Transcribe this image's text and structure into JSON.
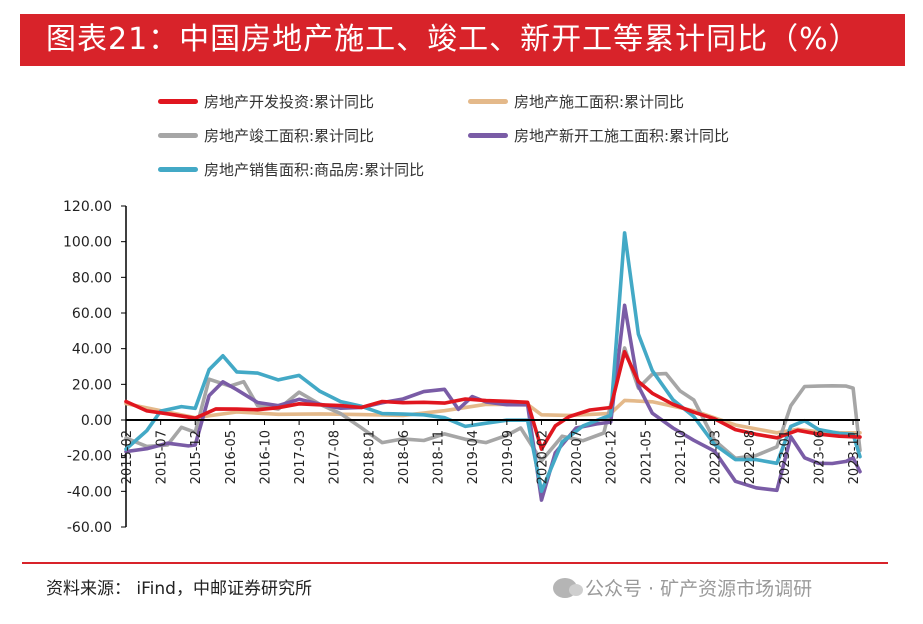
{
  "header": {
    "title": "图表21：中国房地产施工、竣工、新开工等累计同比（%）"
  },
  "footer": {
    "source": "资料来源： iFind，中邮证券研究所",
    "watermark": "公众号 · 矿产资源市场调研"
  },
  "colors": {
    "title_bg": "#d8232a",
    "investment": "#e0161f",
    "construction": "#e4b98a",
    "completed": "#a6a6a6",
    "new_start": "#7a5ca6",
    "sales": "#43a9c6"
  },
  "chart_data": {
    "type": "line",
    "title": "",
    "xlabel": "",
    "ylabel": "",
    "ylim": [
      -60,
      120
    ],
    "yticks": [
      "120.00",
      "100.00",
      "80.00",
      "60.00",
      "40.00",
      "20.00",
      "0.00",
      "-20.00",
      "-40.00",
      "-60.00"
    ],
    "ytick_values": [
      120,
      100,
      80,
      60,
      40,
      20,
      0,
      -20,
      -40,
      -60
    ],
    "x_start": "2015-02",
    "x_end": "2023-12",
    "xticks": [
      "2015-02",
      "2015-07",
      "2015-12",
      "2016-05",
      "2016-10",
      "2017-03",
      "2017-08",
      "2018-01",
      "2018-06",
      "2018-11",
      "2019-04",
      "2019-09",
      "2020-02",
      "2020-07",
      "2020-12",
      "2021-05",
      "2021-10",
      "2022-03",
      "2022-08",
      "2023-01",
      "2023-06",
      "2023-11"
    ],
    "grid": false,
    "legend_position": "top",
    "series": [
      {
        "name": "房地产开发投资:累计同比",
        "color": "#e0161f",
        "points": [
          [
            "2015-02",
            10.4
          ],
          [
            "2015-05",
            5.1
          ],
          [
            "2015-08",
            3.5
          ],
          [
            "2015-12",
            1.0
          ],
          [
            "2016-03",
            6.2
          ],
          [
            "2016-06",
            6.1
          ],
          [
            "2016-09",
            5.8
          ],
          [
            "2016-12",
            6.9
          ],
          [
            "2017-03",
            9.1
          ],
          [
            "2017-06",
            8.5
          ],
          [
            "2017-09",
            8.1
          ],
          [
            "2017-12",
            7.0
          ],
          [
            "2018-03",
            10.4
          ],
          [
            "2018-06",
            9.7
          ],
          [
            "2018-09",
            9.9
          ],
          [
            "2018-12",
            9.5
          ],
          [
            "2019-03",
            11.8
          ],
          [
            "2019-06",
            10.9
          ],
          [
            "2019-09",
            10.5
          ],
          [
            "2019-12",
            9.9
          ],
          [
            "2020-02",
            -16.3
          ],
          [
            "2020-04",
            -3.3
          ],
          [
            "2020-06",
            1.9
          ],
          [
            "2020-09",
            5.6
          ],
          [
            "2020-12",
            7.0
          ],
          [
            "2021-02",
            38.3
          ],
          [
            "2021-04",
            21.6
          ],
          [
            "2021-06",
            15.0
          ],
          [
            "2021-09",
            8.8
          ],
          [
            "2021-12",
            4.4
          ],
          [
            "2022-03",
            0.7
          ],
          [
            "2022-06",
            -5.4
          ],
          [
            "2022-09",
            -8.0
          ],
          [
            "2022-12",
            -10.0
          ],
          [
            "2023-03",
            -5.8
          ],
          [
            "2023-06",
            -7.9
          ],
          [
            "2023-09",
            -9.1
          ],
          [
            "2023-12",
            -9.6
          ]
        ]
      },
      {
        "name": "房地产施工面积:累计同比",
        "color": "#e4b98a",
        "points": [
          [
            "2015-02",
            9.2
          ],
          [
            "2015-06",
            6.0
          ],
          [
            "2015-12",
            1.3
          ],
          [
            "2016-06",
            4.5
          ],
          [
            "2016-12",
            3.2
          ],
          [
            "2017-06",
            3.4
          ],
          [
            "2017-12",
            3.0
          ],
          [
            "2018-06",
            2.6
          ],
          [
            "2018-12",
            5.2
          ],
          [
            "2019-06",
            8.8
          ],
          [
            "2019-12",
            8.7
          ],
          [
            "2020-02",
            2.9
          ],
          [
            "2020-06",
            2.6
          ],
          [
            "2020-12",
            3.7
          ],
          [
            "2021-02",
            11.0
          ],
          [
            "2021-06",
            10.2
          ],
          [
            "2021-12",
            5.2
          ],
          [
            "2022-06",
            -2.8
          ],
          [
            "2022-12",
            -7.2
          ],
          [
            "2023-03",
            -5.2
          ],
          [
            "2023-06",
            -6.6
          ],
          [
            "2023-09",
            -7.1
          ],
          [
            "2023-12",
            -7.2
          ]
        ]
      },
      {
        "name": "房地产竣工面积:累计同比",
        "color": "#a6a6a6",
        "points": [
          [
            "2015-02",
            -10.1
          ],
          [
            "2015-05",
            -14.8
          ],
          [
            "2015-08",
            -14.0
          ],
          [
            "2015-10",
            -4.1
          ],
          [
            "2015-12",
            -6.9
          ],
          [
            "2016-02",
            22.9
          ],
          [
            "2016-05",
            19.0
          ],
          [
            "2016-07",
            21.5
          ],
          [
            "2016-09",
            8.0
          ],
          [
            "2016-12",
            6.1
          ],
          [
            "2017-03",
            15.6
          ],
          [
            "2017-06",
            8.8
          ],
          [
            "2017-09",
            3.6
          ],
          [
            "2017-12",
            -4.4
          ],
          [
            "2018-03",
            -12.7
          ],
          [
            "2018-06",
            -10.6
          ],
          [
            "2018-09",
            -11.5
          ],
          [
            "2018-12",
            -7.8
          ],
          [
            "2019-03",
            -10.8
          ],
          [
            "2019-06",
            -12.7
          ],
          [
            "2019-09",
            -8.6
          ],
          [
            "2019-11",
            -4.5
          ],
          [
            "2020-02",
            -22.9
          ],
          [
            "2020-05",
            -9.1
          ],
          [
            "2020-08",
            -11.6
          ],
          [
            "2020-11",
            -7.3
          ],
          [
            "2021-02",
            40.4
          ],
          [
            "2021-04",
            17.9
          ],
          [
            "2021-06",
            25.7
          ],
          [
            "2021-08",
            26.0
          ],
          [
            "2021-10",
            16.3
          ],
          [
            "2021-12",
            11.2
          ],
          [
            "2022-03",
            -11.5
          ],
          [
            "2022-06",
            -21.5
          ],
          [
            "2022-09",
            -19.9
          ],
          [
            "2022-12",
            -15.0
          ],
          [
            "2023-02",
            8.0
          ],
          [
            "2023-04",
            18.8
          ],
          [
            "2023-06",
            19.0
          ],
          [
            "2023-08",
            19.2
          ],
          [
            "2023-10",
            19.0
          ],
          [
            "2023-11",
            17.9
          ],
          [
            "2023-12",
            -17.0
          ]
        ]
      },
      {
        "name": "房地产新开工施工面积:累计同比",
        "color": "#7a5ca6",
        "points": [
          [
            "2015-02",
            -17.7
          ],
          [
            "2015-05",
            -16.1
          ],
          [
            "2015-08",
            -13.0
          ],
          [
            "2015-11",
            -14.5
          ],
          [
            "2015-12",
            -14.0
          ],
          [
            "2016-02",
            13.7
          ],
          [
            "2016-04",
            21.4
          ],
          [
            "2016-06",
            17.0
          ],
          [
            "2016-09",
            9.8
          ],
          [
            "2016-12",
            8.1
          ],
          [
            "2017-03",
            11.6
          ],
          [
            "2017-06",
            8.8
          ],
          [
            "2017-09",
            6.6
          ],
          [
            "2017-12",
            7.0
          ],
          [
            "2018-03",
            9.7
          ],
          [
            "2018-06",
            11.8
          ],
          [
            "2018-09",
            15.9
          ],
          [
            "2018-12",
            17.2
          ],
          [
            "2019-02",
            6.0
          ],
          [
            "2019-04",
            13.1
          ],
          [
            "2019-06",
            10.1
          ],
          [
            "2019-09",
            8.6
          ],
          [
            "2019-12",
            8.5
          ],
          [
            "2020-02",
            -44.9
          ],
          [
            "2020-04",
            -18.4
          ],
          [
            "2020-07",
            -4.5
          ],
          [
            "2020-10",
            -2.2
          ],
          [
            "2020-12",
            -1.2
          ],
          [
            "2021-02",
            64.3
          ],
          [
            "2021-04",
            19.0
          ],
          [
            "2021-06",
            3.8
          ],
          [
            "2021-09",
            -4.5
          ],
          [
            "2021-12",
            -11.4
          ],
          [
            "2022-03",
            -17.5
          ],
          [
            "2022-06",
            -34.4
          ],
          [
            "2022-09",
            -38.0
          ],
          [
            "2022-12",
            -39.4
          ],
          [
            "2023-02",
            -9.4
          ],
          [
            "2023-04",
            -21.2
          ],
          [
            "2023-06",
            -24.3
          ],
          [
            "2023-08",
            -24.4
          ],
          [
            "2023-10",
            -23.2
          ],
          [
            "2023-11",
            -21.2
          ],
          [
            "2023-12",
            -29.0
          ]
        ]
      },
      {
        "name": "房地产销售面积:商品房:累计同比",
        "color": "#43a9c6",
        "points": [
          [
            "2015-02",
            -16.3
          ],
          [
            "2015-05",
            -6.0
          ],
          [
            "2015-07",
            5.0
          ],
          [
            "2015-10",
            7.5
          ],
          [
            "2015-12",
            6.5
          ],
          [
            "2016-02",
            28.2
          ],
          [
            "2016-04",
            36.0
          ],
          [
            "2016-06",
            27.0
          ],
          [
            "2016-09",
            26.3
          ],
          [
            "2016-12",
            22.5
          ],
          [
            "2017-03",
            25.0
          ],
          [
            "2017-06",
            16.1
          ],
          [
            "2017-09",
            10.3
          ],
          [
            "2017-12",
            7.7
          ],
          [
            "2018-03",
            3.6
          ],
          [
            "2018-06",
            3.3
          ],
          [
            "2018-09",
            2.9
          ],
          [
            "2018-12",
            1.3
          ],
          [
            "2019-03",
            -3.6
          ],
          [
            "2019-06",
            -1.8
          ],
          [
            "2019-09",
            -0.1
          ],
          [
            "2019-12",
            -0.1
          ],
          [
            "2020-02",
            -39.9
          ],
          [
            "2020-05",
            -12.3
          ],
          [
            "2020-08",
            -3.3
          ],
          [
            "2020-11",
            1.3
          ],
          [
            "2020-12",
            2.6
          ],
          [
            "2021-02",
            104.9
          ],
          [
            "2021-04",
            48.1
          ],
          [
            "2021-06",
            27.7
          ],
          [
            "2021-09",
            11.3
          ],
          [
            "2021-12",
            1.9
          ],
          [
            "2022-03",
            -13.8
          ],
          [
            "2022-06",
            -22.2
          ],
          [
            "2022-09",
            -22.2
          ],
          [
            "2022-12",
            -24.3
          ],
          [
            "2023-02",
            -3.6
          ],
          [
            "2023-04",
            -0.4
          ],
          [
            "2023-06",
            -5.3
          ],
          [
            "2023-09",
            -7.5
          ],
          [
            "2023-11",
            -8.0
          ],
          [
            "2023-12",
            -20.5
          ]
        ]
      }
    ]
  }
}
